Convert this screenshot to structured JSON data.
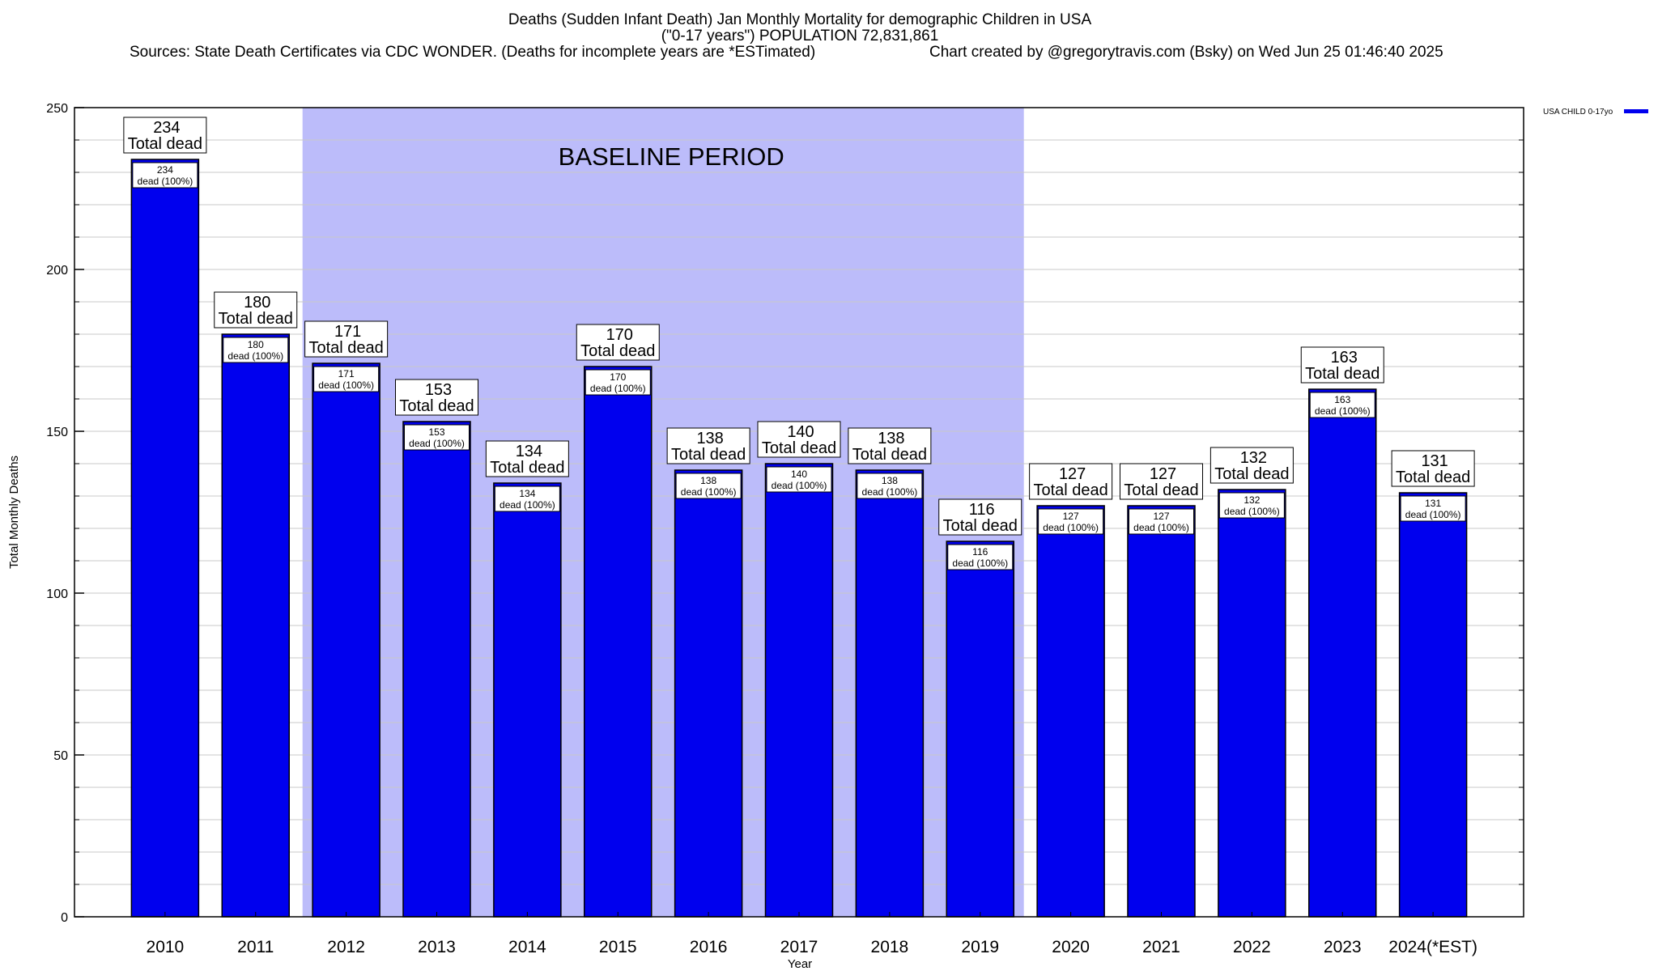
{
  "title": {
    "line1": "Deaths (Sudden Infant Death) Jan Monthly Mortality for demographic Children in USA",
    "line2": "(\"0-17 years\") POPULATION 72,831,861",
    "sources": "Sources: State Death Certificates via CDC WONDER. (Deaths for incomplete years are *ESTimated)",
    "credit": "Chart created by @gregorytravis.com (Bsky) on Wed Jun 25 01:46:40 2025"
  },
  "colors": {
    "bar": "#0000ee",
    "bar_stroke": "#000000",
    "baseline_shade": "#bcbcfa",
    "grid": "#c8c8c8"
  },
  "chart_data": {
    "type": "bar",
    "xlabel": "Year",
    "ylabel": "Total Monthly Deaths",
    "ylim": [
      0,
      250
    ],
    "yticks": [
      0,
      50,
      100,
      150,
      200,
      250
    ],
    "grid": true,
    "legend_position": "top-right",
    "categories": [
      "2010",
      "2011",
      "2012",
      "2013",
      "2014",
      "2015",
      "2016",
      "2017",
      "2018",
      "2019",
      "2020",
      "2021",
      "2022",
      "2023",
      "2024(*EST)"
    ],
    "series": [
      {
        "name": "USA CHILD 0-17yo",
        "values": [
          234,
          180,
          171,
          153,
          134,
          170,
          138,
          140,
          138,
          116,
          127,
          127,
          132,
          163,
          131
        ]
      }
    ],
    "top_label_suffix": "Total dead",
    "inner_label_suffix": "dead (100%)",
    "shaded_region": {
      "label": "BASELINE PERIOD",
      "from_category": "2012",
      "to_category": "2019"
    }
  }
}
